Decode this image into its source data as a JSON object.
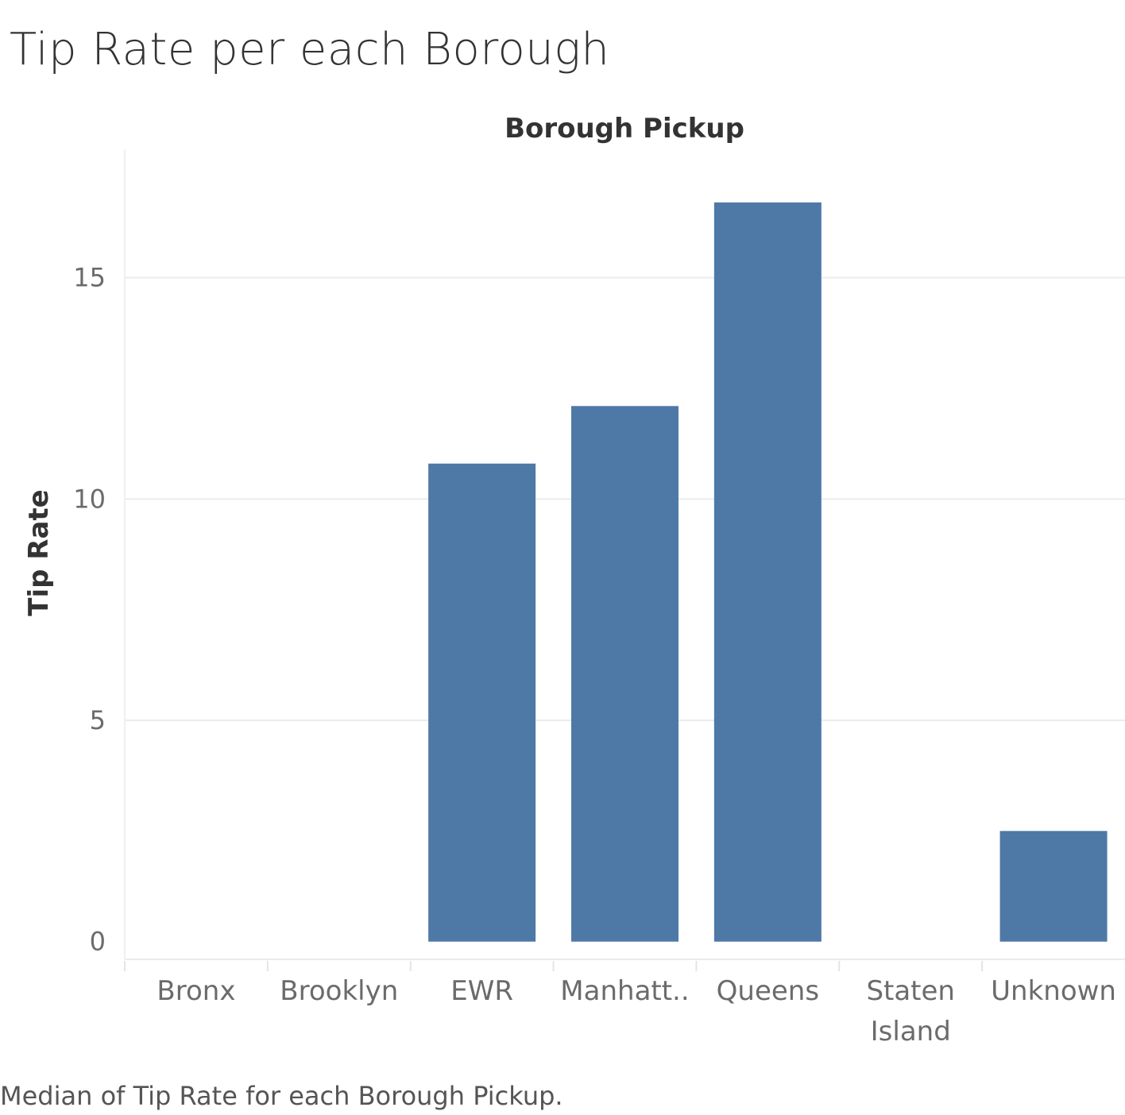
{
  "title": "Tip Rate per each Borough",
  "caption": "Median of Tip Rate for each Borough Pickup.",
  "chart_data": {
    "type": "bar",
    "title": "Tip Rate per each Borough",
    "column_header": "Borough Pickup",
    "ylabel": "Tip Rate",
    "xlabel": "",
    "categories": [
      [
        "Bronx"
      ],
      [
        "Brooklyn"
      ],
      [
        "EWR"
      ],
      [
        "Manhatt.."
      ],
      [
        "Queens"
      ],
      [
        "Staten",
        "Island"
      ],
      [
        "Unknown"
      ]
    ],
    "values": [
      0,
      0,
      10.8,
      12.1,
      16.7,
      0,
      2.5
    ],
    "ylim": [
      -0.4,
      17.9
    ],
    "yticks": [
      0,
      5,
      10,
      15
    ],
    "grid": true,
    "legend": "none",
    "bar_color": "#4e79a7",
    "tick_color": "#6b6b6b",
    "label_color": "#333333",
    "grid_color": "#ebebeb"
  }
}
